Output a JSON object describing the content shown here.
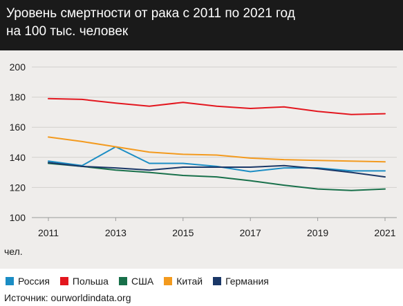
{
  "chart_data": {
    "type": "line",
    "title": "Уровень смертности от рака с 2011 по 2021 год",
    "subtitle": "на 100 тыс. человек",
    "ylabel": "чел.",
    "ylim": [
      100,
      200
    ],
    "yticks": [
      "100",
      "120",
      "140",
      "160",
      "180",
      "200"
    ],
    "xlim": [
      2011,
      2021
    ],
    "xticks": [
      "2011",
      "2013",
      "2015",
      "2017",
      "2019",
      "2021"
    ],
    "x": [
      2011,
      2012,
      2013,
      2014,
      2015,
      2016,
      2017,
      2018,
      2019,
      2020,
      2021
    ],
    "grid": true,
    "legend_position": "bottom",
    "series": [
      {
        "name": "Россия",
        "color": "#1b8dc4",
        "values": [
          137.5,
          134.5,
          147.0,
          136.0,
          136.0,
          134.0,
          130.5,
          133.0,
          133.0,
          131.0,
          131.0
        ]
      },
      {
        "name": "Польша",
        "color": "#e3161e",
        "values": [
          179.0,
          178.5,
          176.0,
          174.0,
          176.5,
          174.0,
          172.5,
          173.5,
          170.5,
          168.5,
          169.0
        ]
      },
      {
        "name": "США",
        "color": "#18704a",
        "values": [
          136.0,
          134.0,
          131.5,
          130.0,
          128.0,
          127.0,
          124.5,
          121.5,
          119.0,
          118.0,
          119.0
        ]
      },
      {
        "name": "Китай",
        "color": "#f39a1e",
        "values": [
          153.5,
          150.5,
          147.0,
          143.5,
          142.0,
          141.5,
          139.5,
          138.5,
          138.0,
          137.5,
          137.0
        ]
      },
      {
        "name": "Германия",
        "color": "#1a3767",
        "values": [
          136.5,
          134.0,
          133.0,
          131.5,
          133.5,
          133.5,
          133.5,
          134.5,
          132.5,
          130.0,
          127.0
        ]
      }
    ]
  },
  "source": "Источник: ourworldindata.org"
}
